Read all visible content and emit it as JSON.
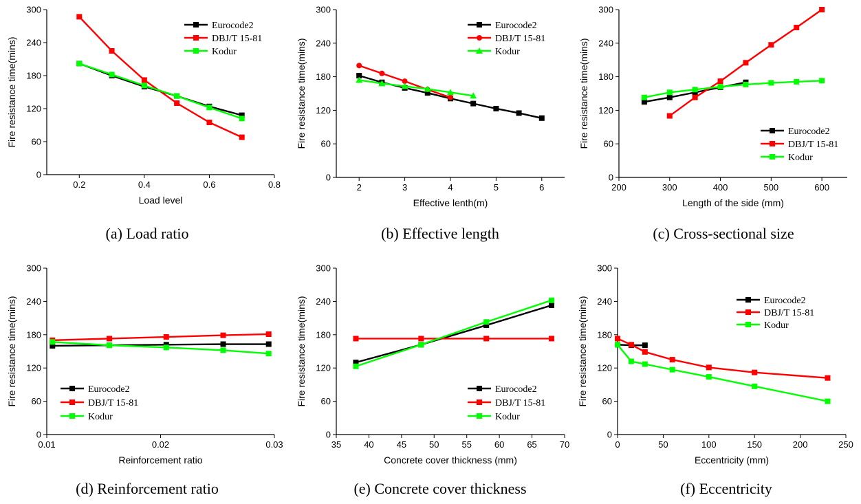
{
  "chart_data": [
    {
      "type": "line",
      "caption": "(a) Load ratio",
      "xlabel": "Load level",
      "ylabel": "Fire resistance time(mins)",
      "xlim": [
        0.1,
        0.8
      ],
      "ylim": [
        0,
        300
      ],
      "xticks": [
        0.2,
        0.4,
        0.6,
        0.8
      ],
      "xtick_labels": [
        "0.2",
        "0.4",
        "0.6",
        "0.8"
      ],
      "yticks": [
        0,
        60,
        120,
        180,
        240,
        300
      ],
      "ytick_labels": [
        "0",
        "60",
        "120",
        "180",
        "240",
        "300"
      ],
      "legend_position": "top-right",
      "series": [
        {
          "name": "Eurocode2",
          "color": "#000000",
          "marker": "square",
          "x": [
            0.2,
            0.3,
            0.4,
            0.5,
            0.6,
            0.7
          ],
          "y": [
            202,
            180,
            160,
            143,
            124,
            108
          ]
        },
        {
          "name": "DBJ/T 15-81",
          "color": "#ff0000",
          "marker": "square",
          "x": [
            0.2,
            0.3,
            0.4,
            0.5,
            0.6,
            0.7
          ],
          "y": [
            287,
            225,
            172,
            130,
            95,
            68
          ]
        },
        {
          "name": "Kodur",
          "color": "#00ff00",
          "marker": "square",
          "x": [
            0.2,
            0.3,
            0.4,
            0.5,
            0.6,
            0.7
          ],
          "y": [
            202,
            182,
            162,
            143,
            122,
            102
          ]
        }
      ]
    },
    {
      "type": "line",
      "caption": "(b) Effective length",
      "xlabel": "Effective lenth(m)",
      "ylabel": "Fire resistance time(mins)",
      "xlim": [
        1.5,
        6.5
      ],
      "ylim": [
        0,
        300
      ],
      "xticks": [
        2,
        3,
        4,
        5,
        6
      ],
      "xtick_labels": [
        "2",
        "3",
        "4",
        "5",
        "6"
      ],
      "yticks": [
        0,
        60,
        120,
        180,
        240,
        300
      ],
      "ytick_labels": [
        "0",
        "60",
        "120",
        "180",
        "240",
        "300"
      ],
      "legend_position": "top-right",
      "series": [
        {
          "name": "Eurocode2",
          "color": "#000000",
          "marker": "square",
          "x": [
            2,
            2.5,
            3,
            3.5,
            4,
            4.5,
            5,
            5.5,
            6
          ],
          "y": [
            182,
            170,
            160,
            151,
            141,
            132,
            123,
            115,
            106
          ]
        },
        {
          "name": "DBJ/T 15-81",
          "color": "#ff0000",
          "marker": "circle",
          "x": [
            2,
            2.5,
            3,
            3.5,
            4
          ],
          "y": [
            200,
            186,
            172,
            157,
            143
          ]
        },
        {
          "name": "Kodur",
          "color": "#00ff00",
          "marker": "triangle",
          "x": [
            2,
            2.5,
            3,
            3.5,
            4,
            4.5
          ],
          "y": [
            174,
            168,
            163,
            158,
            152,
            146
          ]
        }
      ]
    },
    {
      "type": "line",
      "caption": "(c) Cross-sectional size",
      "xlabel": "Length of the side (mm)",
      "ylabel": "Fire resistance time(mins)",
      "xlim": [
        200,
        650
      ],
      "ylim": [
        0,
        300
      ],
      "xticks": [
        200,
        300,
        400,
        500,
        600
      ],
      "xtick_labels": [
        "200",
        "300",
        "400",
        "500",
        "600"
      ],
      "yticks": [
        0,
        60,
        120,
        180,
        240,
        300
      ],
      "ytick_labels": [
        "0",
        "60",
        "120",
        "180",
        "240",
        "300"
      ],
      "legend_position": "bottom-right",
      "series": [
        {
          "name": "Eurocode2",
          "color": "#000000",
          "marker": "square",
          "x": [
            250,
            300,
            350,
            400,
            450
          ],
          "y": [
            135,
            143,
            152,
            161,
            170
          ]
        },
        {
          "name": "DBJ/T 15-81",
          "color": "#ff0000",
          "marker": "square",
          "x": [
            300,
            350,
            400,
            450,
            500,
            550,
            600
          ],
          "y": [
            110,
            143,
            172,
            205,
            237,
            268,
            300
          ]
        },
        {
          "name": "Kodur",
          "color": "#00ff00",
          "marker": "square",
          "x": [
            250,
            300,
            350,
            400,
            450,
            500,
            550,
            600
          ],
          "y": [
            143,
            152,
            157,
            162,
            166,
            169,
            171,
            173
          ]
        }
      ]
    },
    {
      "type": "line",
      "caption": "(d) Reinforcement ratio",
      "xlabel": "Reinforcement ratio",
      "ylabel": "Fire resistance time(mins)",
      "xlim": [
        0.01,
        0.03
      ],
      "ylim": [
        0,
        300
      ],
      "xticks": [
        0.01,
        0.02,
        0.03
      ],
      "xtick_labels": [
        "0.01",
        "0.02",
        "0.03"
      ],
      "yticks": [
        0,
        60,
        120,
        180,
        240,
        300
      ],
      "ytick_labels": [
        "0",
        "60",
        "120",
        "180",
        "240",
        "300"
      ],
      "legend_position": "bottom-left",
      "series": [
        {
          "name": "Eurocode2",
          "color": "#000000",
          "marker": "square",
          "x": [
            0.0105,
            0.0155,
            0.0205,
            0.0255,
            0.0295
          ],
          "y": [
            160,
            161,
            162,
            163,
            163
          ]
        },
        {
          "name": "DBJ/T 15-81",
          "color": "#ff0000",
          "marker": "square",
          "x": [
            0.0105,
            0.0155,
            0.0205,
            0.0255,
            0.0295
          ],
          "y": [
            170,
            173,
            176,
            179,
            181
          ]
        },
        {
          "name": "Kodur",
          "color": "#00ff00",
          "marker": "square",
          "x": [
            0.0105,
            0.0155,
            0.0205,
            0.0255,
            0.0295
          ],
          "y": [
            167,
            161,
            157,
            152,
            146
          ]
        }
      ]
    },
    {
      "type": "line",
      "caption": "(e) Concrete cover thickness",
      "xlabel": "Concrete cover thickness (mm)",
      "ylabel": "Fire resistance time(mins)",
      "xlim": [
        35,
        70
      ],
      "ylim": [
        0,
        300
      ],
      "xticks": [
        35,
        40,
        45,
        50,
        55,
        60,
        65,
        70
      ],
      "xtick_labels": [
        "35",
        "40",
        "45",
        "50",
        "55",
        "60",
        "65",
        "70"
      ],
      "yticks": [
        0,
        60,
        120,
        180,
        240,
        300
      ],
      "ytick_labels": [
        "0",
        "60",
        "120",
        "180",
        "240",
        "300"
      ],
      "legend_position": "bottom-right",
      "series": [
        {
          "name": "Eurocode2",
          "color": "#000000",
          "marker": "square",
          "x": [
            38,
            48,
            58,
            68
          ],
          "y": [
            130,
            162,
            197,
            233
          ]
        },
        {
          "name": "DBJ/T 15-81",
          "color": "#ff0000",
          "marker": "square",
          "x": [
            38,
            48,
            58,
            68
          ],
          "y": [
            173,
            173,
            173,
            173
          ]
        },
        {
          "name": "Kodur",
          "color": "#00ff00",
          "marker": "square",
          "x": [
            38,
            48,
            58,
            68
          ],
          "y": [
            123,
            162,
            203,
            242
          ]
        }
      ]
    },
    {
      "type": "line",
      "caption": "(f) Eccentricity",
      "xlabel": "Eccentricity (mm)",
      "ylabel": "Fire resistance time(mins)",
      "xlim": [
        0,
        250
      ],
      "ylim": [
        0,
        300
      ],
      "xticks": [
        0,
        50,
        100,
        150,
        200,
        250
      ],
      "xtick_labels": [
        "0",
        "50",
        "100",
        "150",
        "200",
        "250"
      ],
      "yticks": [
        0,
        60,
        120,
        180,
        240,
        300
      ],
      "ytick_labels": [
        "0",
        "60",
        "120",
        "180",
        "240",
        "300"
      ],
      "legend_position": "top-right",
      "series": [
        {
          "name": "Eurocode2",
          "color": "#000000",
          "marker": "square",
          "x": [
            0,
            15,
            30
          ],
          "y": [
            162,
            161,
            161
          ]
        },
        {
          "name": "DBJ/T 15-81",
          "color": "#ff0000",
          "marker": "square",
          "x": [
            0,
            15,
            30,
            60,
            100,
            150,
            230
          ],
          "y": [
            173,
            162,
            149,
            135,
            121,
            112,
            102
          ]
        },
        {
          "name": "Kodur",
          "color": "#00ff00",
          "marker": "square",
          "x": [
            0,
            15,
            30,
            60,
            100,
            150,
            230
          ],
          "y": [
            162,
            132,
            127,
            117,
            104,
            87,
            60
          ]
        }
      ]
    }
  ]
}
